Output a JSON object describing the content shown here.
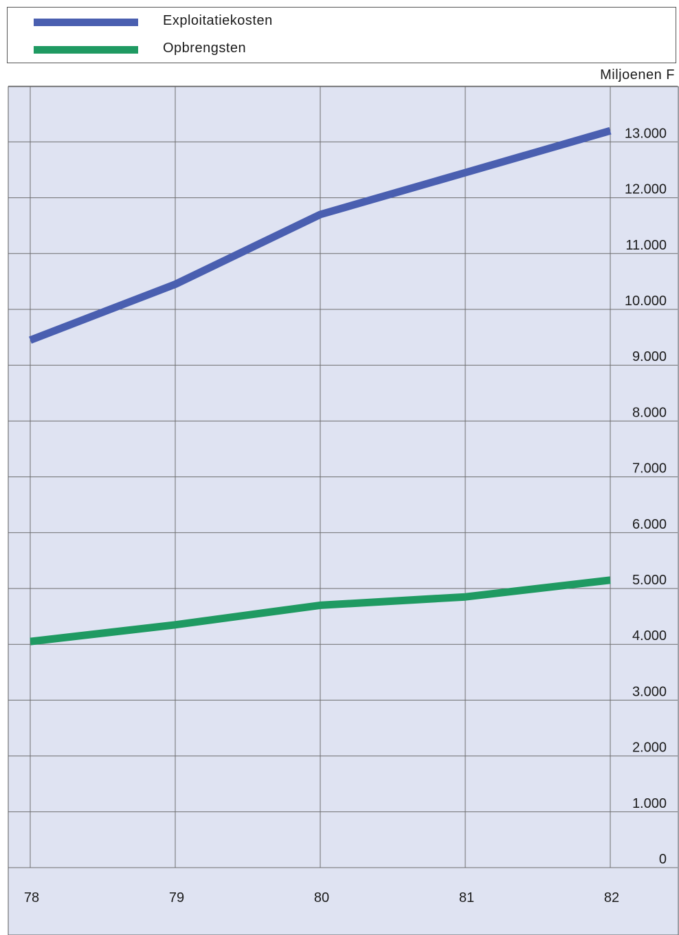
{
  "legend": {
    "items": [
      {
        "label": "Exploitatiekosten",
        "color": "#4a5fb0"
      },
      {
        "label": "Opbrengsten",
        "color": "#1f9a62"
      }
    ]
  },
  "unit_label": "Miljoenen F",
  "chart_data": {
    "type": "line",
    "categories": [
      "78",
      "79",
      "80",
      "81",
      "82"
    ],
    "series": [
      {
        "name": "Exploitatiekosten",
        "color": "#4a5fb0",
        "values": [
          9450,
          10450,
          11700,
          12450,
          13200
        ]
      },
      {
        "name": "Opbrengsten",
        "color": "#1f9a62",
        "values": [
          4050,
          4350,
          4700,
          4850,
          5150
        ]
      }
    ],
    "y_ticks": [
      "0",
      "1.000",
      "2.000",
      "3.000",
      "4.000",
      "5.000",
      "6.000",
      "7.000",
      "8.000",
      "9.000",
      "10.000",
      "11.000",
      "12.000",
      "13.000"
    ],
    "ylim": [
      0,
      14000
    ],
    "grid": true,
    "legend_position": "top",
    "y_axis_position": "right"
  }
}
